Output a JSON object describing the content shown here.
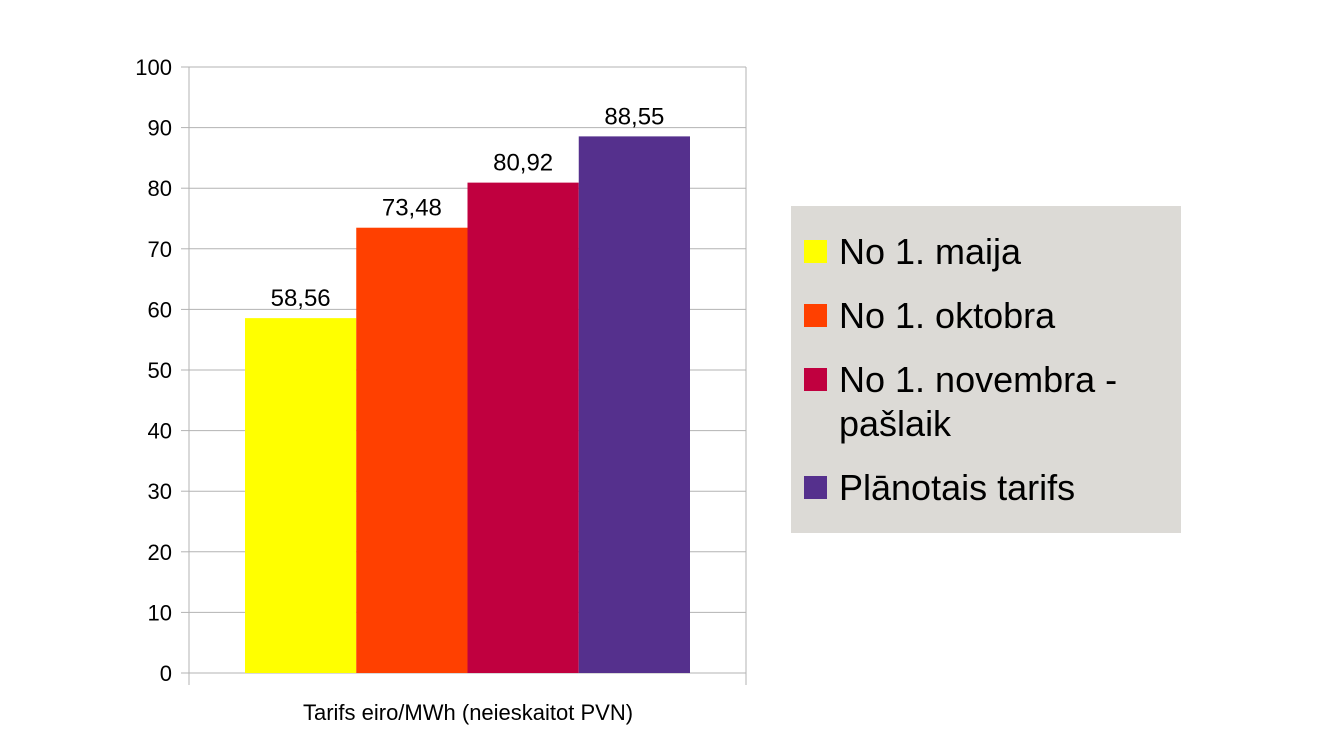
{
  "chart_data": {
    "type": "bar",
    "title": "",
    "xlabel": "",
    "ylabel": "",
    "categories": [
      "Tarifs eiro/MWh (neieskaitot PVN)"
    ],
    "series": [
      {
        "name": "No 1. maija",
        "values": [
          58.56
        ],
        "label": "58,56",
        "color": "#ffff00"
      },
      {
        "name": "No 1. oktobra",
        "values": [
          73.48
        ],
        "label": "73,48",
        "color": "#ff4000"
      },
      {
        "name": "No 1. novembra - pašlaik",
        "values": [
          80.92
        ],
        "label": "80,92",
        "color": "#c0003f"
      },
      {
        "name": "Plānotais tarifs",
        "values": [
          88.55
        ],
        "label": "88,55",
        "color": "#55308d"
      }
    ],
    "ylim": [
      0,
      100
    ],
    "yticks": [
      0,
      10,
      20,
      30,
      40,
      50,
      60,
      70,
      80,
      90,
      100
    ],
    "grid": true,
    "legend_position": "right"
  }
}
